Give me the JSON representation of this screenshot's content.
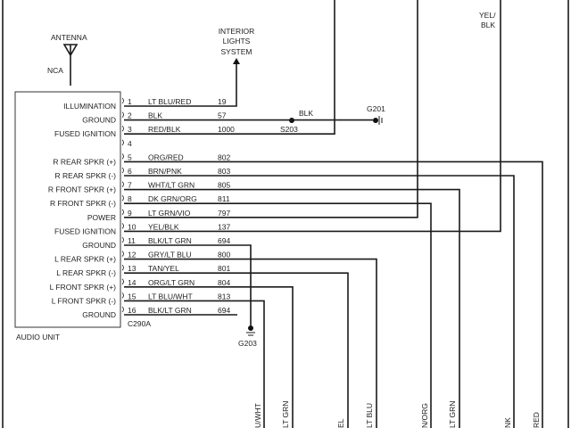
{
  "antenna": {
    "label": "ANTENNA",
    "nca": "NCA"
  },
  "interior_lights": [
    "INTERIOR",
    "LIGHTS",
    "SYSTEM"
  ],
  "splice": {
    "label": "S203",
    "wire": "BLK"
  },
  "grounds": {
    "g201": "G201",
    "g203": "G203"
  },
  "top_right_label": [
    "YEL/",
    "BLK"
  ],
  "unit": {
    "name": "AUDIO UNIT",
    "connector": "C290A"
  },
  "pins": [
    {
      "num": "1",
      "function": "ILLUMINATION",
      "color": "LT BLU/RED",
      "circuit": "19"
    },
    {
      "num": "2",
      "function": "GROUND",
      "color": "BLK",
      "circuit": "57"
    },
    {
      "num": "3",
      "function": "FUSED IGNITION",
      "color": "RED/BLK",
      "circuit": "1000"
    },
    {
      "num": "4",
      "function": "",
      "color": "",
      "circuit": ""
    },
    {
      "num": "5",
      "function": "R REAR SPKR (+)",
      "color": "ORG/RED",
      "circuit": "802"
    },
    {
      "num": "6",
      "function": "R REAR SPKR (-)",
      "color": "BRN/PNK",
      "circuit": "803"
    },
    {
      "num": "7",
      "function": "R FRONT SPKR (+)",
      "color": "WHT/LT GRN",
      "circuit": "805"
    },
    {
      "num": "8",
      "function": "R FRONT SPKR (-)",
      "color": "DK GRN/ORG",
      "circuit": "811"
    },
    {
      "num": "9",
      "function": "POWER",
      "color": "LT GRN/VIO",
      "circuit": "797"
    },
    {
      "num": "10",
      "function": "FUSED IGNITION",
      "color": "YEL/BLK",
      "circuit": "137"
    },
    {
      "num": "11",
      "function": "GROUND",
      "color": "BLK/LT GRN",
      "circuit": "694"
    },
    {
      "num": "12",
      "function": "L REAR SPKR (+)",
      "color": "GRY/LT BLU",
      "circuit": "800"
    },
    {
      "num": "13",
      "function": "L REAR SPKR (-)",
      "color": "TAN/YEL",
      "circuit": "801"
    },
    {
      "num": "14",
      "function": "L FRONT SPKR (+)",
      "color": "ORG/LT GRN",
      "circuit": "804"
    },
    {
      "num": "15",
      "function": "L FRONT SPKR (-)",
      "color": "LT BLU/WHT",
      "circuit": "813"
    },
    {
      "num": "16",
      "function": "GROUND",
      "color": "BLK/LT GRN",
      "circuit": "694"
    }
  ],
  "bottom_labels": [
    "U/WHT",
    "LT GRN",
    "EL",
    "LT BLU",
    "N/ORG",
    "LT GRN",
    "NK",
    "RED"
  ]
}
